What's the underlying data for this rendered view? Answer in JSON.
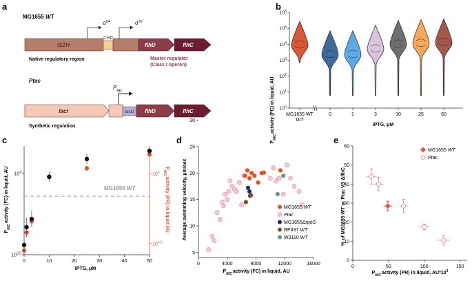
{
  "panels": {
    "a": {
      "label": "a",
      "wt_title_pre": "MG1655 ",
      "wt_title_it": "WT",
      "is1h": "IS1H",
      "crp": "CRP",
      "flhD": "flhD",
      "flhC": "flhC",
      "sigma54": "σ",
      "sigma54_sup": "54",
      "sigma70": "σ",
      "sigma70_sup": "70",
      "native_caption": "Native regulatory region",
      "master_caption_1": "Master regulator",
      "master_caption_2": "(Class I operon)",
      "ptac_title": "Ptac",
      "ptac_arrow_P": "P",
      "ptac_arrow_sub": "tac",
      "lacI": "lacI",
      "lacO": "lacO",
      "synthetic_caption": "Synthetic regulation"
    },
    "b": {
      "label": "b",
      "ylabel_pre": "P",
      "ylabel_sub": "fliC",
      "ylabel_post": "activity (FC) in liquid, AU",
      "xlabel": "IPTG, μM",
      "yticks": [
        "10",
        "10",
        "10",
        "10",
        "10",
        "10",
        "10"
      ],
      "ytick_exps": [
        "0",
        "1",
        "2",
        "3",
        "4",
        "5",
        "6"
      ],
      "categories": [
        "MG1655",
        "0",
        "1",
        "3",
        "10",
        "25",
        "50"
      ],
      "wt_sub": "WT",
      "colors": [
        "#d9583a",
        "#3f6b9a",
        "#5ba9e6",
        "#dcc3dc",
        "#6f706e",
        "#f3a85c",
        "#a3584a"
      ]
    },
    "c": {
      "label": "c",
      "ylabel_left_pre": "P",
      "ylabel_left_sub": "fliC",
      "ylabel_left_post": "activity (FC) in liquid, AU",
      "ylabel_right_pre": "P",
      "ylabel_right_sub": "fliC",
      "ylabel_right_post": "activity (PR) in liquid AU",
      "xlabel": "IPTG, μM",
      "ref_label_pre": "MG1655 ",
      "ref_label_it": "WT",
      "yticks_left": [
        {
          "base": "10",
          "exp": "4"
        },
        {
          "base": "10",
          "exp": "3.5"
        }
      ],
      "yticks_right": [
        {
          "base": "10",
          "exp": "5"
        },
        {
          "base": "10",
          "exp": "4.5"
        }
      ],
      "xticks": [
        "0",
        "10",
        "20",
        "30",
        "40",
        "50"
      ]
    },
    "d": {
      "label": "d",
      "ylabel": "Average swimming velocity, μm/sec",
      "xlabel_pre": "P",
      "xlabel_sub": "fliC",
      "xlabel_post": "activity (FC) in liquid, AU",
      "xticks": [
        "0",
        "4000",
        "8000",
        "12000",
        "16000"
      ],
      "yticks": [
        "5",
        "10",
        "15",
        "20",
        "25",
        "30"
      ],
      "legend": [
        {
          "text": "MG1655 ",
          "it": "WT",
          "color": "#e0502a",
          "open": false
        },
        {
          "text": "",
          "it": "Ptac",
          "color": "#e8a0b4",
          "open": true
        },
        {
          "text": "MG1655Δ",
          "it": "rpoS",
          "color": "#1c2b6e",
          "open": false
        },
        {
          "text": "RP437 ",
          "it": "WT",
          "color": "#8b4a2a",
          "open": false
        },
        {
          "text": "W3110 ",
          "it": "WT",
          "color": "#6f8d9a",
          "open": false
        }
      ]
    },
    "e": {
      "label": "e",
      "ylabel": "% of MG1655 WT or Ptac VS ΔflhC",
      "xlabel_pre": "P",
      "xlabel_sub": "fliC",
      "xlabel_post": "activity (PR) in liquid, AU*10",
      "xlabel_sup": "3",
      "xticks": [
        "0",
        "50",
        "100",
        "150"
      ],
      "yticks": [
        "0",
        "10",
        "20",
        "30",
        "40",
        "50",
        "60"
      ],
      "legend": [
        {
          "text": "MG1655 ",
          "it": "WT",
          "color": "#d9583a",
          "open": false
        },
        {
          "text": "",
          "it": "Ptac",
          "color": "#e8a0b4",
          "open": true
        }
      ]
    }
  },
  "chart_data": [
    {
      "panel": "b",
      "type": "violin",
      "title": "",
      "ylabel": "PfliC activity (FC) in liquid, AU",
      "xlabel": "IPTG, μM",
      "yscale": "log",
      "ylim_exp": [
        0,
        6
      ],
      "categories": [
        "MG1655 WT",
        "0",
        "1",
        "3",
        "10",
        "25",
        "50"
      ],
      "medians_log10": [
        3.95,
        3.35,
        3.35,
        3.7,
        4.0,
        4.05,
        4.1
      ]
    },
    {
      "panel": "c",
      "type": "scatter",
      "xlabel": "IPTG, μM",
      "x": [
        0,
        1,
        3,
        10,
        25,
        50
      ],
      "xlim": [
        0,
        50
      ],
      "series": [
        {
          "name": "FC (left axis)",
          "color": "#111111",
          "log10_values": [
            3.56,
            3.67,
            3.72,
            3.98,
            4.09,
            4.14
          ],
          "log10_err": [
            0.04,
            0.06,
            0.05,
            0.03,
            0.03,
            0.03
          ]
        },
        {
          "name": "PR (right axis)",
          "color": "#d9583a",
          "log10_values": [
            4.45,
            4.58,
            4.66,
            4.98,
            5.04,
            5.14
          ],
          "log10_err": [
            0.02,
            0.03,
            0.03,
            0.02,
            0.02,
            0.02
          ]
        }
      ],
      "reference_log10_left": 3.86,
      "ylim_left_log10": [
        3.5,
        4.17
      ],
      "ylim_right_log10": [
        4.42,
        5.2
      ]
    },
    {
      "panel": "d",
      "type": "scatter",
      "xlabel": "PfliC activity (FC) in liquid, AU",
      "ylabel": "Average swimming velocity, μm/sec",
      "xlim": [
        0,
        16000
      ],
      "ylim": [
        4,
        25
      ],
      "series": [
        {
          "name": "MG1655 WT",
          "color": "#e0502a",
          "x": [
            6500,
            6800,
            7100,
            7400,
            7800,
            8300,
            8800,
            9100,
            11400
          ],
          "y": [
            19.5,
            20.5,
            19.0,
            20.0,
            19.5,
            18.2,
            20.0,
            20.1,
            20.5
          ]
        },
        {
          "name": "Ptac",
          "color": "#e8a0b4",
          "open": true,
          "x": [
            1400,
            1900,
            2200,
            2600,
            3000,
            3300,
            3500,
            3700,
            4000,
            4200,
            4400,
            4700,
            5000,
            5300,
            5700,
            6000,
            6300,
            10000,
            10400,
            10800,
            11200,
            11800,
            12300,
            12800,
            13300,
            14000,
            14400
          ],
          "y": [
            5.5,
            8.0,
            7.2,
            12.5,
            11.2,
            14.5,
            13.8,
            16.0,
            15.0,
            16.5,
            18.5,
            17.5,
            17.0,
            16.5,
            18.2,
            14.0,
            19.5,
            19.0,
            21.0,
            18.5,
            19.0,
            16.0,
            21.5,
            19.0,
            17.5,
            16.5,
            14.0
          ]
        },
        {
          "name": "MG1655ΔrpoS",
          "color": "#1c2b6e",
          "x": [
            6900,
            7100,
            7200
          ],
          "y": [
            17.2,
            16.5,
            15.7
          ]
        },
        {
          "name": "RP437 WT",
          "color": "#8b4a2a",
          "x": [
            6600,
            7300
          ],
          "y": [
            14.5,
            15.8
          ]
        },
        {
          "name": "W3110 WT",
          "color": "#6f8d9a",
          "x": [
            11000,
            11800
          ],
          "y": [
            16.0,
            19.5
          ]
        }
      ]
    },
    {
      "panel": "e",
      "type": "scatter",
      "xlabel": "PfliC activity (PR) in liquid, AU*10^3",
      "ylabel": "% of MG1655 WT or Ptac VS ΔflhC",
      "xlim": [
        0,
        160
      ],
      "ylim": [
        0,
        60
      ],
      "series": [
        {
          "name": "MG1655 WT",
          "color": "#d9583a",
          "x": [
            49
          ],
          "y": [
            28.5
          ],
          "xerr": [
            6
          ],
          "yerr": [
            2.5
          ]
        },
        {
          "name": "Ptac",
          "color": "#e8a0b4",
          "open": true,
          "x": [
            26,
            36,
            71,
            100,
            127
          ],
          "y": [
            44,
            40,
            28.5,
            17.5,
            10.5
          ],
          "xerr": [
            7,
            7,
            6,
            8,
            9
          ],
          "yerr": [
            4,
            3.5,
            3.5,
            1.5,
            2.5
          ]
        }
      ]
    }
  ]
}
